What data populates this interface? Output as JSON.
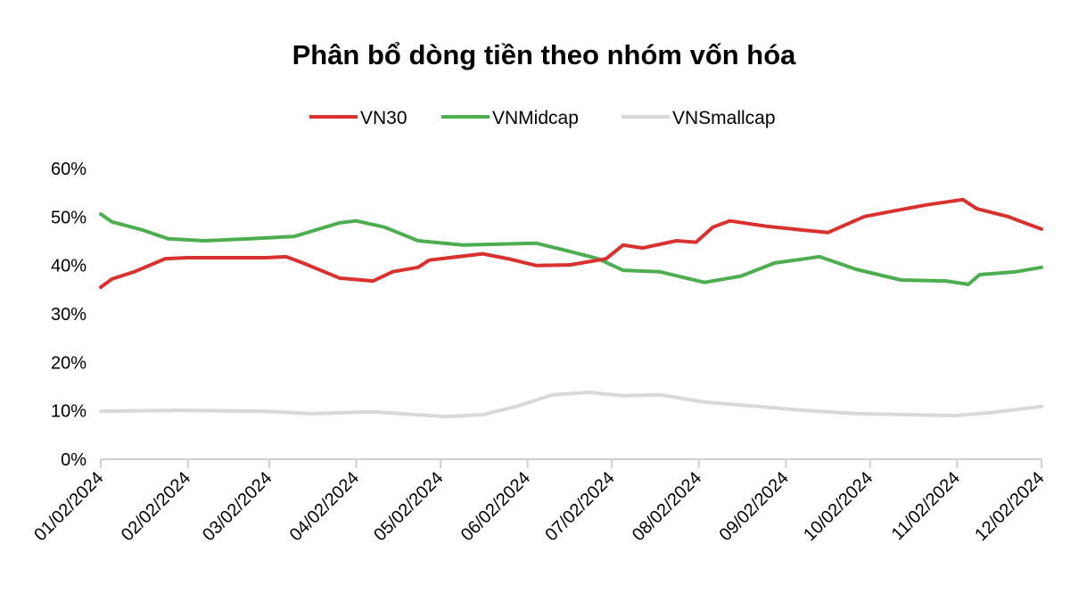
{
  "chart_data": {
    "type": "line",
    "title": "Phân bổ dòng tiền theo nhóm vốn hóa",
    "xlabel": "",
    "ylabel": "",
    "legend_position": "top",
    "grid": false,
    "ylim": [
      0,
      60
    ],
    "y_ticks": [
      "0%",
      "10%",
      "20%",
      "30%",
      "40%",
      "50%",
      "60%"
    ],
    "x_ticks": [
      "01/02/2024",
      "02/02/2024",
      "03/02/2024",
      "04/02/2024",
      "05/02/2024",
      "06/02/2024",
      "07/02/2024",
      "08/02/2024",
      "09/02/2024",
      "10/02/2024",
      "11/02/2024",
      "12/02/2024"
    ],
    "x_tick_dates": [
      "2024-01-02",
      "2024-02-02",
      "2024-03-02",
      "2024-04-02",
      "2024-05-02",
      "2024-06-02",
      "2024-07-02",
      "2024-08-02",
      "2024-09-02",
      "2024-10-02",
      "2024-11-02",
      "2024-12-02"
    ],
    "series": [
      {
        "name": "VN30",
        "color": "#d9312e",
        "points": [
          [
            "2024-01-02",
            35.5
          ],
          [
            "2024-01-06",
            37.2
          ],
          [
            "2024-01-14",
            38.7
          ],
          [
            "2024-01-25",
            41.4
          ],
          [
            "2024-02-02",
            41.6
          ],
          [
            "2024-02-14",
            41.6
          ],
          [
            "2024-03-01",
            41.6
          ],
          [
            "2024-03-08",
            41.8
          ],
          [
            "2024-03-14",
            40.5
          ],
          [
            "2024-03-27",
            37.4
          ],
          [
            "2024-04-08",
            36.8
          ],
          [
            "2024-04-15",
            38.7
          ],
          [
            "2024-04-24",
            39.6
          ],
          [
            "2024-04-28",
            41.1
          ],
          [
            "2024-05-17",
            42.4
          ],
          [
            "2024-05-26",
            41.4
          ],
          [
            "2024-06-05",
            40.0
          ],
          [
            "2024-06-17",
            40.1
          ],
          [
            "2024-06-30",
            41.4
          ],
          [
            "2024-07-06",
            44.2
          ],
          [
            "2024-07-13",
            43.6
          ],
          [
            "2024-07-25",
            45.1
          ],
          [
            "2024-08-01",
            44.8
          ],
          [
            "2024-08-07",
            47.9
          ],
          [
            "2024-08-13",
            49.2
          ],
          [
            "2024-08-26",
            48.1
          ],
          [
            "2024-09-08",
            47.3
          ],
          [
            "2024-09-17",
            46.8
          ],
          [
            "2024-09-30",
            50.1
          ],
          [
            "2024-10-10",
            51.2
          ],
          [
            "2024-10-22",
            52.5
          ],
          [
            "2024-11-04",
            53.6
          ],
          [
            "2024-11-09",
            51.7
          ],
          [
            "2024-11-20",
            50.1
          ],
          [
            "2024-12-02",
            47.5
          ]
        ]
      },
      {
        "name": "VNMidcap",
        "color": "#4cae4f",
        "points": [
          [
            "2024-01-02",
            50.6
          ],
          [
            "2024-01-06",
            49.0
          ],
          [
            "2024-01-17",
            47.3
          ],
          [
            "2024-01-26",
            45.5
          ],
          [
            "2024-02-08",
            45.1
          ],
          [
            "2024-02-24",
            45.5
          ],
          [
            "2024-03-11",
            46.0
          ],
          [
            "2024-03-27",
            48.8
          ],
          [
            "2024-04-02",
            49.2
          ],
          [
            "2024-04-12",
            47.9
          ],
          [
            "2024-04-24",
            45.1
          ],
          [
            "2024-05-10",
            44.2
          ],
          [
            "2024-05-23",
            44.4
          ],
          [
            "2024-06-05",
            44.6
          ],
          [
            "2024-06-17",
            42.9
          ],
          [
            "2024-06-27",
            41.4
          ],
          [
            "2024-07-06",
            39.0
          ],
          [
            "2024-07-19",
            38.7
          ],
          [
            "2024-08-04",
            36.5
          ],
          [
            "2024-08-17",
            37.8
          ],
          [
            "2024-08-29",
            40.5
          ],
          [
            "2024-09-14",
            41.8
          ],
          [
            "2024-09-27",
            39.2
          ],
          [
            "2024-10-13",
            37.0
          ],
          [
            "2024-10-29",
            36.8
          ],
          [
            "2024-11-06",
            36.1
          ],
          [
            "2024-11-10",
            38.1
          ],
          [
            "2024-11-23",
            38.7
          ],
          [
            "2024-12-02",
            39.6
          ]
        ]
      },
      {
        "name": "VNSmallcap",
        "color": "#d9d9d9",
        "points": [
          [
            "2024-01-02",
            9.9
          ],
          [
            "2024-01-30",
            10.1
          ],
          [
            "2024-03-01",
            9.9
          ],
          [
            "2024-03-17",
            9.4
          ],
          [
            "2024-04-08",
            9.8
          ],
          [
            "2024-05-04",
            8.8
          ],
          [
            "2024-05-17",
            9.2
          ],
          [
            "2024-05-29",
            10.9
          ],
          [
            "2024-06-11",
            13.3
          ],
          [
            "2024-06-24",
            13.8
          ],
          [
            "2024-07-06",
            13.1
          ],
          [
            "2024-07-19",
            13.3
          ],
          [
            "2024-08-04",
            11.8
          ],
          [
            "2024-08-23",
            10.9
          ],
          [
            "2024-09-08",
            10.1
          ],
          [
            "2024-09-27",
            9.4
          ],
          [
            "2024-10-16",
            9.2
          ],
          [
            "2024-11-01",
            9.0
          ],
          [
            "2024-11-14",
            9.6
          ],
          [
            "2024-12-02",
            10.9
          ]
        ]
      }
    ]
  }
}
